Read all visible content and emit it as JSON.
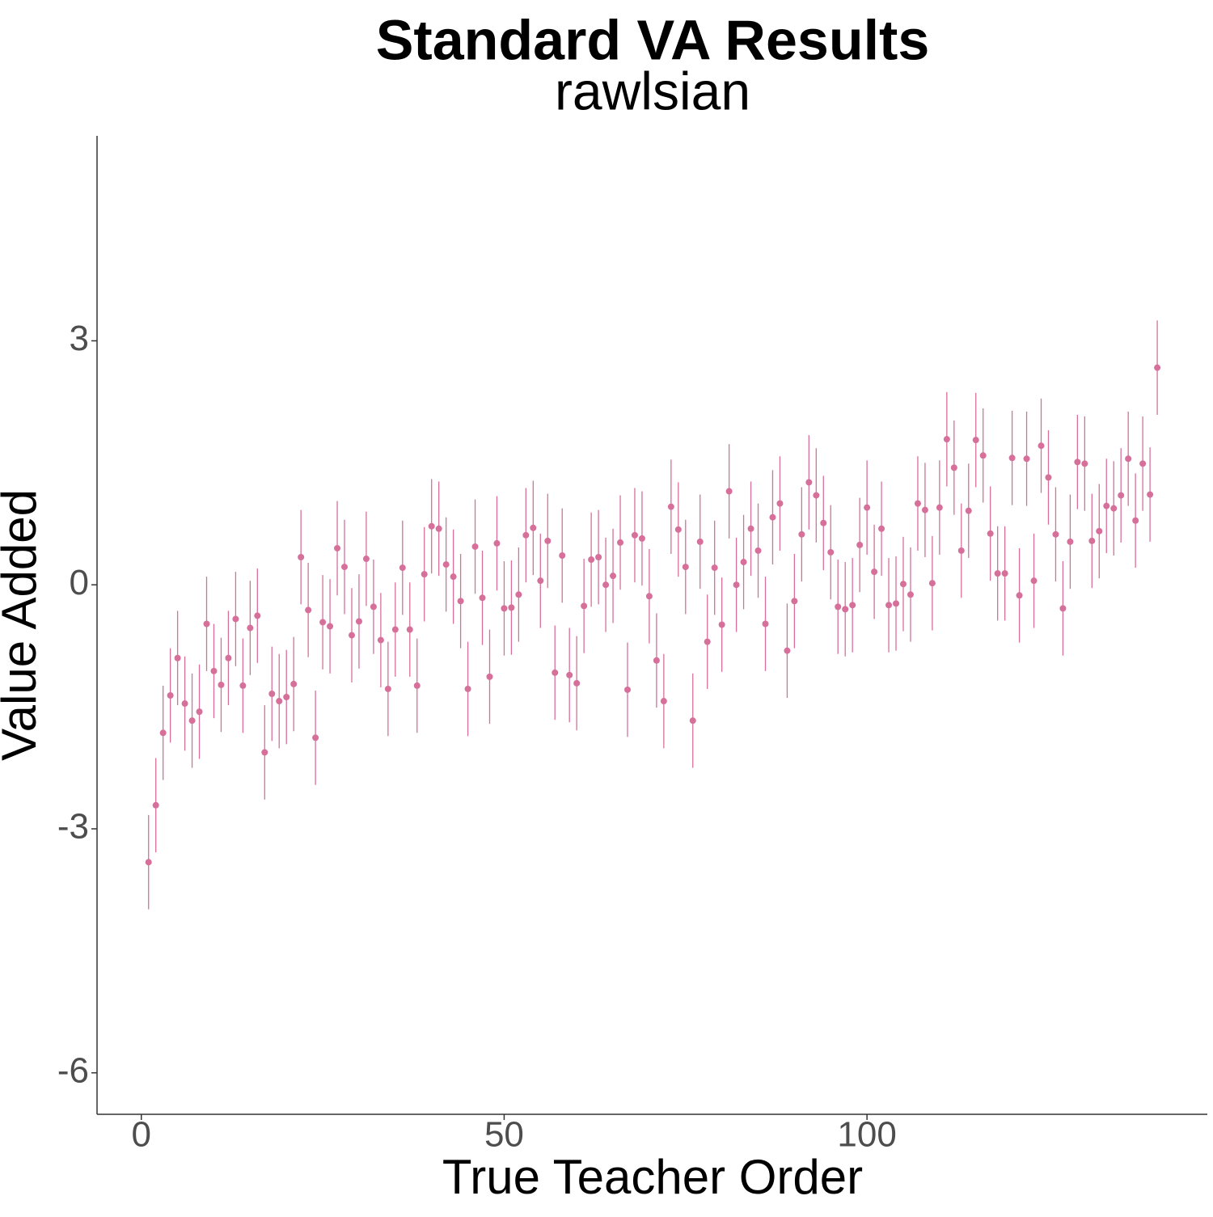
{
  "chart_data": {
    "type": "scatter",
    "title": "Standard VA Results",
    "subtitle": "rawlsian",
    "x_label": "True Teacher Order",
    "y_label": "Value Added",
    "x": [
      1,
      2,
      3,
      4,
      5,
      6,
      7,
      8,
      9,
      10,
      11,
      12,
      13,
      14,
      15,
      16,
      17,
      18,
      19,
      20,
      21,
      22,
      23,
      24,
      25,
      26,
      27,
      28,
      29,
      30,
      31,
      32,
      33,
      34,
      35,
      36,
      37,
      38,
      39,
      40,
      41,
      42,
      43,
      44,
      45,
      46,
      47,
      48,
      49,
      50,
      51,
      52,
      53,
      54,
      55,
      56,
      57,
      58,
      59,
      60,
      61,
      62,
      63,
      64,
      65,
      66,
      67,
      68,
      69,
      70,
      71,
      72,
      73,
      74,
      75,
      76,
      77,
      78,
      79,
      80,
      81,
      82,
      83,
      84,
      85,
      86,
      87,
      88,
      89,
      90,
      91,
      92,
      93,
      94,
      95,
      96,
      97,
      98,
      99,
      100,
      101,
      102,
      103,
      104,
      105,
      106,
      107,
      108,
      109,
      110,
      111,
      112,
      113,
      114,
      115,
      116,
      117,
      118,
      119,
      120,
      121,
      122,
      123,
      124,
      125,
      126,
      127,
      128,
      129,
      130,
      131,
      132,
      133,
      134,
      135,
      136,
      137,
      138,
      139,
      140
    ],
    "series": [
      {
        "color": "#d6709b",
        "values": [
          -3.41,
          -2.71,
          -1.82,
          -1.36,
          -0.9,
          -1.46,
          -1.67,
          -1.56,
          -0.48,
          -1.06,
          -1.23,
          -0.9,
          -0.42,
          -1.24,
          -0.53,
          -0.38,
          -2.06,
          -1.34,
          -1.43,
          -1.38,
          -1.22,
          0.34,
          -0.31,
          -1.88,
          -0.46,
          -0.51,
          0.45,
          0.22,
          -0.62,
          -0.45,
          0.32,
          -0.27,
          -0.68,
          -1.28,
          -0.55,
          0.21,
          -0.55,
          -1.24,
          0.13,
          0.72,
          0.69,
          0.25,
          0.1,
          -0.2,
          -1.28,
          0.47,
          -0.16,
          -1.13,
          0.51,
          -0.29,
          -0.28,
          -0.12,
          0.61,
          0.7,
          0.05,
          0.54,
          -1.08,
          0.36,
          -1.11,
          -1.21,
          -0.26,
          0.31,
          0.34,
          0.0,
          0.11,
          0.52,
          -1.29,
          0.61,
          0.57,
          -0.14,
          -0.93,
          -1.43,
          0.96,
          0.68,
          0.22,
          -1.67,
          0.53,
          -0.7,
          0.21,
          -0.49,
          1.15,
          0.0,
          0.28,
          0.69,
          0.42,
          -0.48,
          0.83,
          1.0,
          -0.81,
          -0.2,
          0.62,
          1.26,
          1.1,
          0.76,
          0.4,
          -0.27,
          -0.3,
          -0.25,
          0.49,
          0.95,
          0.16,
          0.69,
          -0.25,
          -0.23,
          0.01,
          -0.12,
          1.0,
          0.92,
          0.02,
          0.95,
          1.79,
          1.44,
          0.42,
          0.91,
          1.78,
          1.59,
          0.63,
          0.14,
          0.14,
          1.56,
          -0.13,
          1.55,
          0.05,
          1.71,
          1.32,
          0.62,
          -0.29,
          0.53,
          1.51,
          1.49,
          0.54,
          0.66,
          0.97,
          0.94,
          1.1,
          1.55,
          0.79,
          1.49,
          1.11,
          2.67
        ]
      }
    ],
    "error": 0.58,
    "xlim": [
      -6.1,
      146.9
    ],
    "ylim": [
      -6.51,
      5.52
    ],
    "xticks": [
      0,
      50,
      100
    ],
    "yticks": [
      -6,
      -3,
      0,
      3
    ],
    "grid": false
  }
}
